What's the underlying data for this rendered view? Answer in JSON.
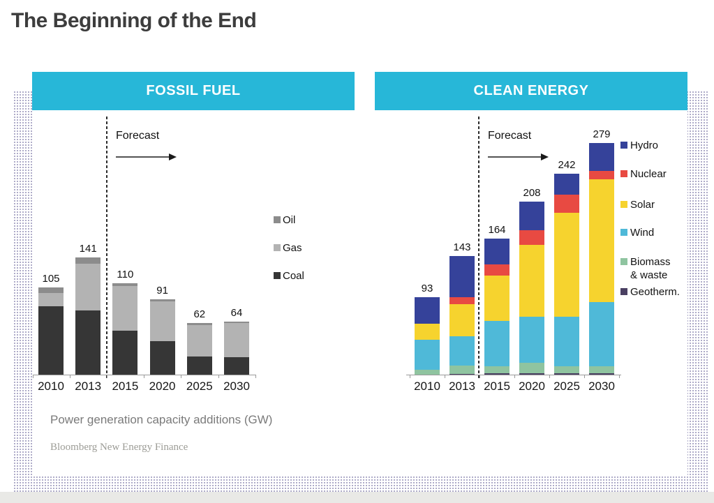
{
  "header": {
    "title": "The Beginning of the End"
  },
  "fossil_panel": {
    "header_label": "FOSSIL FUEL",
    "forecast_label": "Forecast"
  },
  "clean_panel": {
    "header_label": "CLEAN ENERGY",
    "forecast_label": "Forecast"
  },
  "footer": {
    "caption": "Power generation capacity additions (GW)",
    "source": "Bloomberg New Energy Finance"
  },
  "colors": {
    "header_cyan": "#27b7d8",
    "dots": "#a8a4c4",
    "coal": "#363636",
    "gas": "#b3b3b3",
    "oil": "#8c8c8c",
    "hydro": "#35429a",
    "nuclear": "#e84a42",
    "solar": "#f6d32e",
    "wind": "#4fb9d8",
    "biomass": "#8fc4a0",
    "geothermal": "#4a4062"
  },
  "chart_data": [
    {
      "type": "bar",
      "stacked": true,
      "title": "FOSSIL FUEL",
      "xlabel": "",
      "ylabel": "Power generation capacity additions (GW)",
      "categories": [
        "2010",
        "2013",
        "2015",
        "2020",
        "2025",
        "2030"
      ],
      "totals": [
        105,
        141,
        110,
        91,
        62,
        64
      ],
      "series": [
        {
          "name": "Coal",
          "color": "#363636",
          "values": [
            82,
            77,
            53,
            40,
            22,
            21
          ]
        },
        {
          "name": "Gas",
          "color": "#b3b3b3",
          "values": [
            16,
            57,
            54,
            48,
            38,
            41
          ]
        },
        {
          "name": "Oil",
          "color": "#8c8c8c",
          "values": [
            7,
            7,
            3,
            3,
            2,
            2
          ]
        }
      ],
      "legend": {
        "position": "right",
        "entries": [
          {
            "label": "Oil",
            "series": "Oil"
          },
          {
            "label": "Gas",
            "series": "Gas"
          },
          {
            "label": "Coal",
            "series": "Coal"
          }
        ]
      },
      "annotations": {
        "forecast_label": "Forecast",
        "forecast_after_category": "2013"
      },
      "grid": false
    },
    {
      "type": "bar",
      "stacked": true,
      "title": "CLEAN ENERGY",
      "xlabel": "",
      "ylabel": "Power generation capacity additions (GW)",
      "categories": [
        "2010",
        "2013",
        "2015",
        "2020",
        "2025",
        "2030"
      ],
      "totals": [
        93,
        143,
        164,
        208,
        242,
        279
      ],
      "series": [
        {
          "name": "Geotherm.",
          "color": "#4a4062",
          "values": [
            0,
            1,
            2,
            2,
            2,
            2
          ]
        },
        {
          "name": "Biomass & waste",
          "color": "#8fc4a0",
          "values": [
            6,
            10,
            8,
            12,
            8,
            8
          ]
        },
        {
          "name": "Wind",
          "color": "#4fb9d8",
          "values": [
            36,
            35,
            55,
            56,
            60,
            77
          ]
        },
        {
          "name": "Solar",
          "color": "#f6d32e",
          "values": [
            19,
            39,
            54,
            86,
            125,
            148
          ]
        },
        {
          "name": "Nuclear",
          "color": "#e84a42",
          "values": [
            0,
            8,
            14,
            18,
            22,
            10
          ]
        },
        {
          "name": "Hydro",
          "color": "#35429a",
          "values": [
            32,
            50,
            31,
            34,
            25,
            34
          ]
        }
      ],
      "legend": {
        "position": "right",
        "entries": [
          {
            "label": "Hydro",
            "series": "Hydro"
          },
          {
            "label": "Nuclear",
            "series": "Nuclear"
          },
          {
            "label": "Solar",
            "series": "Solar"
          },
          {
            "label": "Wind",
            "series": "Wind"
          },
          {
            "label": "Biomass\n& waste",
            "series": "Biomass & waste"
          },
          {
            "label": "Geotherm.",
            "series": "Geotherm."
          }
        ]
      },
      "annotations": {
        "forecast_label": "Forecast",
        "forecast_after_category": "2013"
      },
      "grid": false
    }
  ]
}
